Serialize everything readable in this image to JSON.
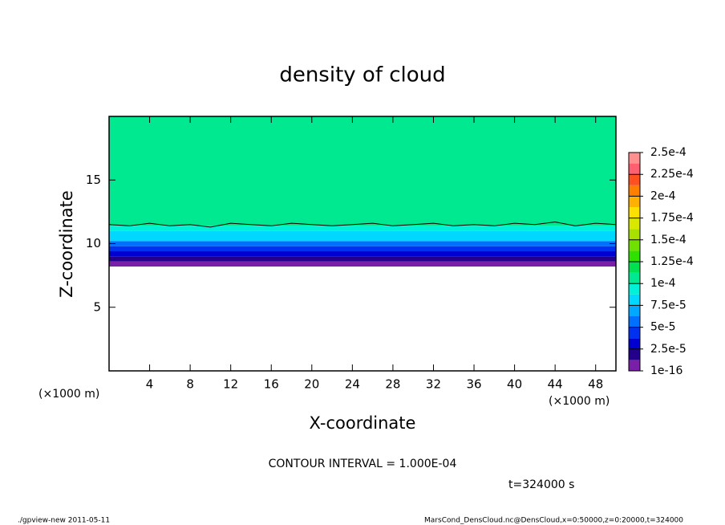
{
  "chart_data": {
    "type": "contour",
    "title": "density of cloud",
    "x_label": "X-coordinate",
    "y_label": "Z-coordinate",
    "x_unit_left": "(×1000 m)",
    "x_unit_right": "(×1000 m)",
    "xlim": [
      0,
      50
    ],
    "xticks": [
      4,
      8,
      12,
      16,
      20,
      24,
      28,
      32,
      36,
      40,
      44,
      48
    ],
    "ylim": [
      0,
      20
    ],
    "yticks": [
      5,
      10,
      15
    ],
    "profile": {
      "z": [
        8.2,
        8.6,
        9.0,
        9.4,
        9.8,
        10.2,
        10.6,
        11.0,
        11.4,
        20
      ],
      "values": [
        1e-05,
        2e-05,
        3e-05,
        4.5e-05,
        6e-05,
        7.5e-05,
        8.5e-05,
        9.5e-05,
        0.00011
      ]
    },
    "contour": {
      "level": {
        "value": 0.0001,
        "label": "1e-4"
      },
      "x": [
        0,
        2,
        4,
        6,
        8,
        10,
        12,
        14,
        16,
        18,
        20,
        22,
        24,
        26,
        28,
        30,
        32,
        34,
        36,
        38,
        40,
        42,
        44,
        46,
        48,
        50
      ],
      "z": [
        11.5,
        11.4,
        11.6,
        11.4,
        11.5,
        11.3,
        11.6,
        11.5,
        11.4,
        11.6,
        11.5,
        11.4,
        11.5,
        11.6,
        11.4,
        11.5,
        11.6,
        11.4,
        11.5,
        11.4,
        11.6,
        11.5,
        11.7,
        11.4,
        11.6,
        11.5
      ]
    },
    "colorbar": {
      "lim": [
        0,
        0.00025
      ],
      "ticks": [
        {
          "value": 1e-16,
          "label": "1e-16"
        },
        {
          "value": 2.5e-05,
          "label": "2.5e-5"
        },
        {
          "value": 5e-05,
          "label": "5e-5"
        },
        {
          "value": 7.5e-05,
          "label": "7.5e-5"
        },
        {
          "value": 0.0001,
          "label": "1e-4"
        },
        {
          "value": 0.000125,
          "label": "1.25e-4"
        },
        {
          "value": 0.00015,
          "label": "1.5e-4"
        },
        {
          "value": 0.000175,
          "label": "1.75e-4"
        },
        {
          "value": 0.0002,
          "label": "2e-4"
        },
        {
          "value": 0.000225,
          "label": "2.25e-4"
        },
        {
          "value": 0.00025,
          "label": "2.5e-4"
        }
      ],
      "colors": [
        "#7a1fa8",
        "#22008c",
        "#0000d0",
        "#0030f0",
        "#0070ff",
        "#00a8ff",
        "#00d8ff",
        "#00f0d8",
        "#00e890",
        "#00e050",
        "#30e000",
        "#70e000",
        "#a8e000",
        "#d8e800",
        "#ffe000",
        "#ffb000",
        "#ff8000",
        "#ff5020",
        "#ff6070",
        "#ff9090"
      ]
    },
    "contour_interval": "CONTOUR INTERVAL = 1.000E-04",
    "time": "t=324000 s",
    "footer_left": "./gpview-new  2011-05-11",
    "footer_right": "MarsCond_DensCloud.nc@DensCloud,x=0:50000,z=0:20000,t=324000"
  }
}
